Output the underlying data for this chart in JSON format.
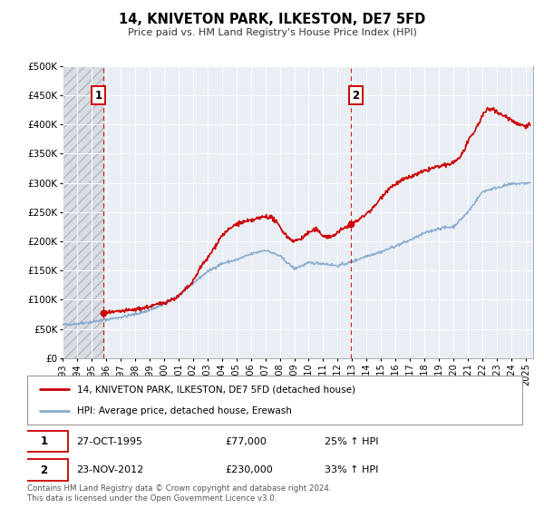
{
  "title": "14, KNIVETON PARK, ILKESTON, DE7 5FD",
  "subtitle": "Price paid vs. HM Land Registry's House Price Index (HPI)",
  "ylim": [
    0,
    500000
  ],
  "yticks": [
    0,
    50000,
    100000,
    150000,
    200000,
    250000,
    300000,
    350000,
    400000,
    450000,
    500000
  ],
  "ytick_labels": [
    "£0",
    "£50K",
    "£100K",
    "£150K",
    "£200K",
    "£250K",
    "£300K",
    "£350K",
    "£400K",
    "£450K",
    "£500K"
  ],
  "xlim_start": 1993.0,
  "xlim_end": 2025.5,
  "xtick_years": [
    1993,
    1994,
    1995,
    1996,
    1997,
    1998,
    1999,
    2000,
    2001,
    2002,
    2003,
    2004,
    2005,
    2006,
    2007,
    2008,
    2009,
    2010,
    2011,
    2012,
    2013,
    2014,
    2015,
    2016,
    2017,
    2018,
    2019,
    2020,
    2021,
    2022,
    2023,
    2024,
    2025
  ],
  "red_line_color": "#cc0000",
  "blue_line_color": "#88aacc",
  "sale1_x": 1995.82,
  "sale1_y": 77000,
  "sale1_date": "27-OCT-1995",
  "sale1_price": "£77,000",
  "sale1_hpi": "25% ↑ HPI",
  "sale2_x": 2012.9,
  "sale2_y": 230000,
  "sale2_date": "23-NOV-2012",
  "sale2_price": "£230,000",
  "sale2_hpi": "33% ↑ HPI",
  "vline1_x": 1995.82,
  "vline2_x": 2012.9,
  "legend_red_label": "14, KNIVETON PARK, ILKESTON, DE7 5FD (detached house)",
  "legend_blue_label": "HPI: Average price, detached house, Erewash",
  "footer": "Contains HM Land Registry data © Crown copyright and database right 2024.\nThis data is licensed under the Open Government Licence v3.0.",
  "background_color": "#ffffff",
  "plot_bg_color": "#e8eef4",
  "grid_color": "#ffffff"
}
